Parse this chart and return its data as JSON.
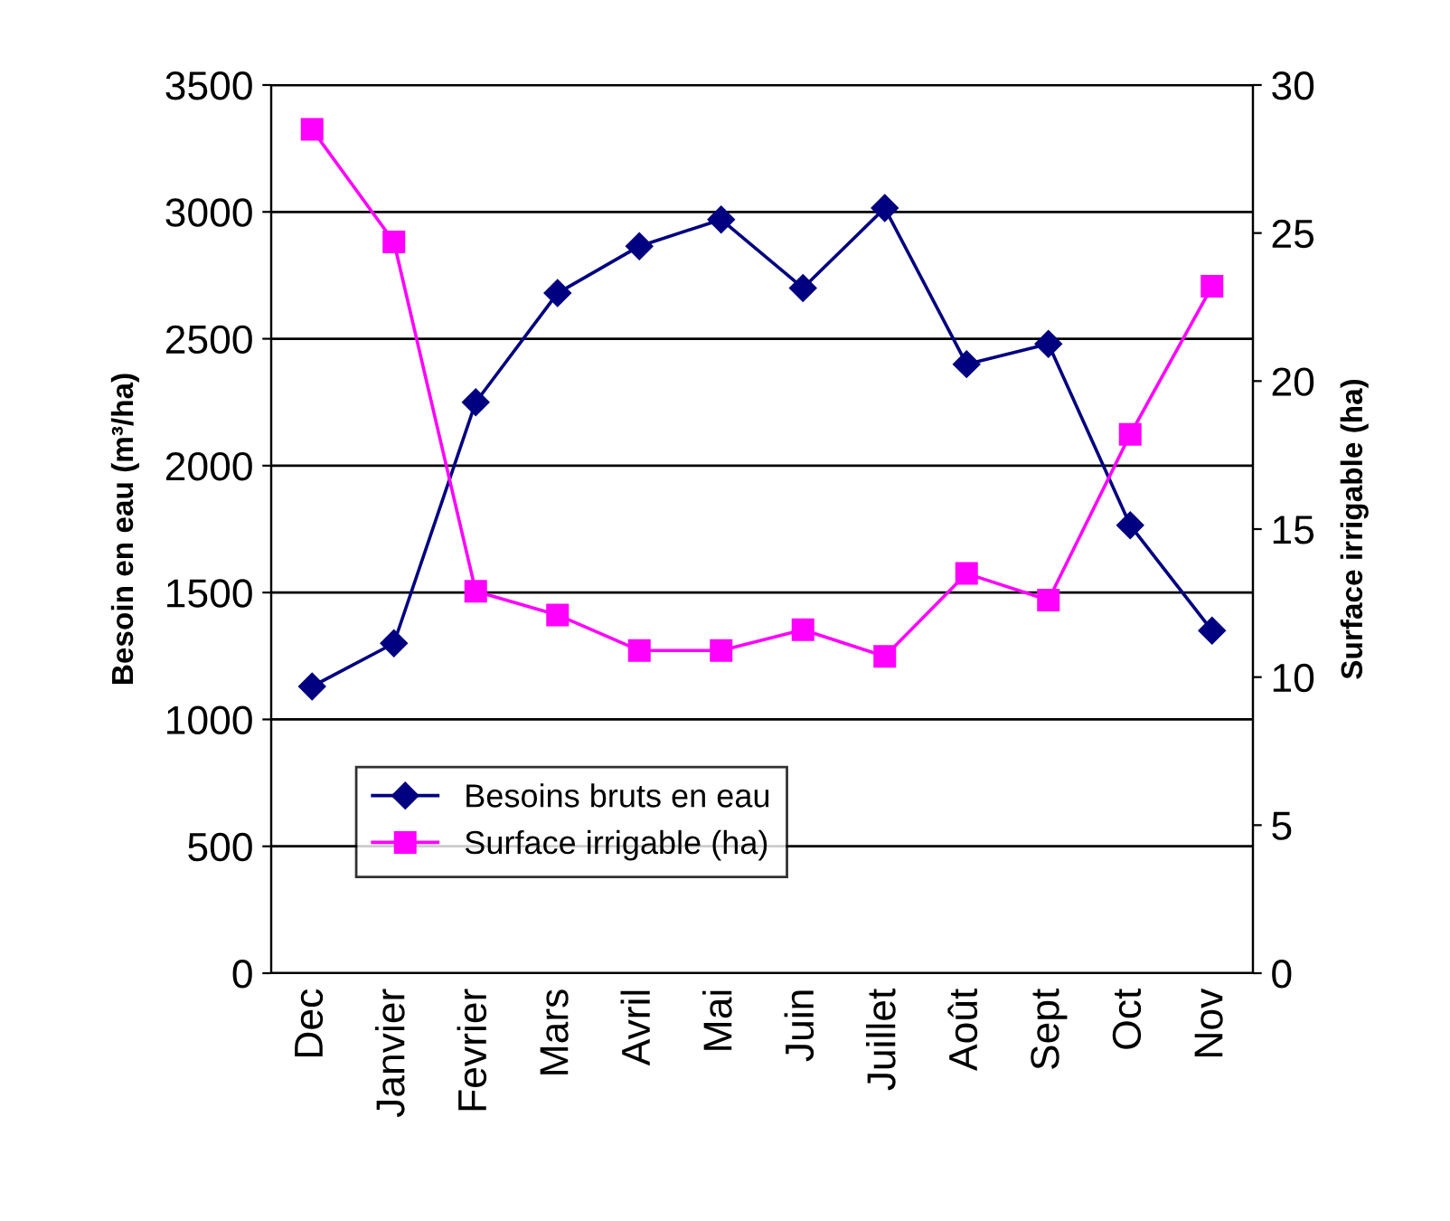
{
  "chart_data": {
    "type": "line",
    "ylabel": "Besoin en eau (m³/ha)",
    "y2label": "Surface irrigable (ha)",
    "categories": [
      "Dec",
      "Janvier",
      "Fevrier",
      "Mars",
      "Avril",
      "Mai",
      "Juin",
      "Juillet",
      "Août",
      "Sept",
      "Oct",
      "Nov"
    ],
    "series": [
      {
        "name": "Besoins bruts en eau",
        "color": "#000080",
        "marker": "diamond",
        "values": [
          1130,
          1300,
          2250,
          2680,
          2865,
          2970,
          2700,
          3015,
          2400,
          2480,
          1765,
          1350
        ]
      },
      {
        "name": "Surface irrigable (ha)",
        "color": "#ff00ff",
        "marker": "square",
        "axis": "y2",
        "values": [
          28.5,
          24.7,
          12.9,
          12.1,
          10.9,
          10.9,
          11.6,
          10.7,
          13.5,
          12.6,
          18.2,
          23.2
        ]
      }
    ],
    "ylim": [
      0,
      3500
    ],
    "yticks": [
      0,
      500,
      1000,
      1500,
      2000,
      2500,
      3000,
      3500
    ],
    "y2lim": [
      0,
      30
    ],
    "y2ticks": [
      0,
      5,
      10,
      15,
      20,
      25,
      30
    ],
    "grid": "y",
    "legend": "lower left",
    "line_style": "solid"
  }
}
